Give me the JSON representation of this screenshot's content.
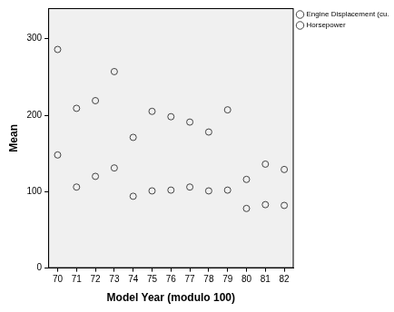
{
  "chart_data": {
    "type": "scatter",
    "x_label": "Model Year (modulo 100)",
    "y_label": "Mean",
    "categories": [
      "70",
      "71",
      "72",
      "73",
      "74",
      "75",
      "76",
      "77",
      "78",
      "79",
      "80",
      "81",
      "82"
    ],
    "series": [
      {
        "name": "Engine Displacement (cu. inches)",
        "color": "#444444",
        "marker": "circle",
        "values": [
          286,
          209,
          219,
          257,
          171,
          205,
          198,
          191,
          178,
          207,
          116,
          136,
          129
        ]
      },
      {
        "name": "Horsepower",
        "color": "#444444",
        "marker": "circle",
        "values": [
          148,
          106,
          120,
          131,
          94,
          101,
          102,
          106,
          101,
          102,
          78,
          83,
          82
        ]
      }
    ],
    "ylim": [
      0,
      340
    ],
    "yticks": [
      0,
      100,
      200,
      300
    ],
    "grid": false,
    "legend": "top right"
  }
}
